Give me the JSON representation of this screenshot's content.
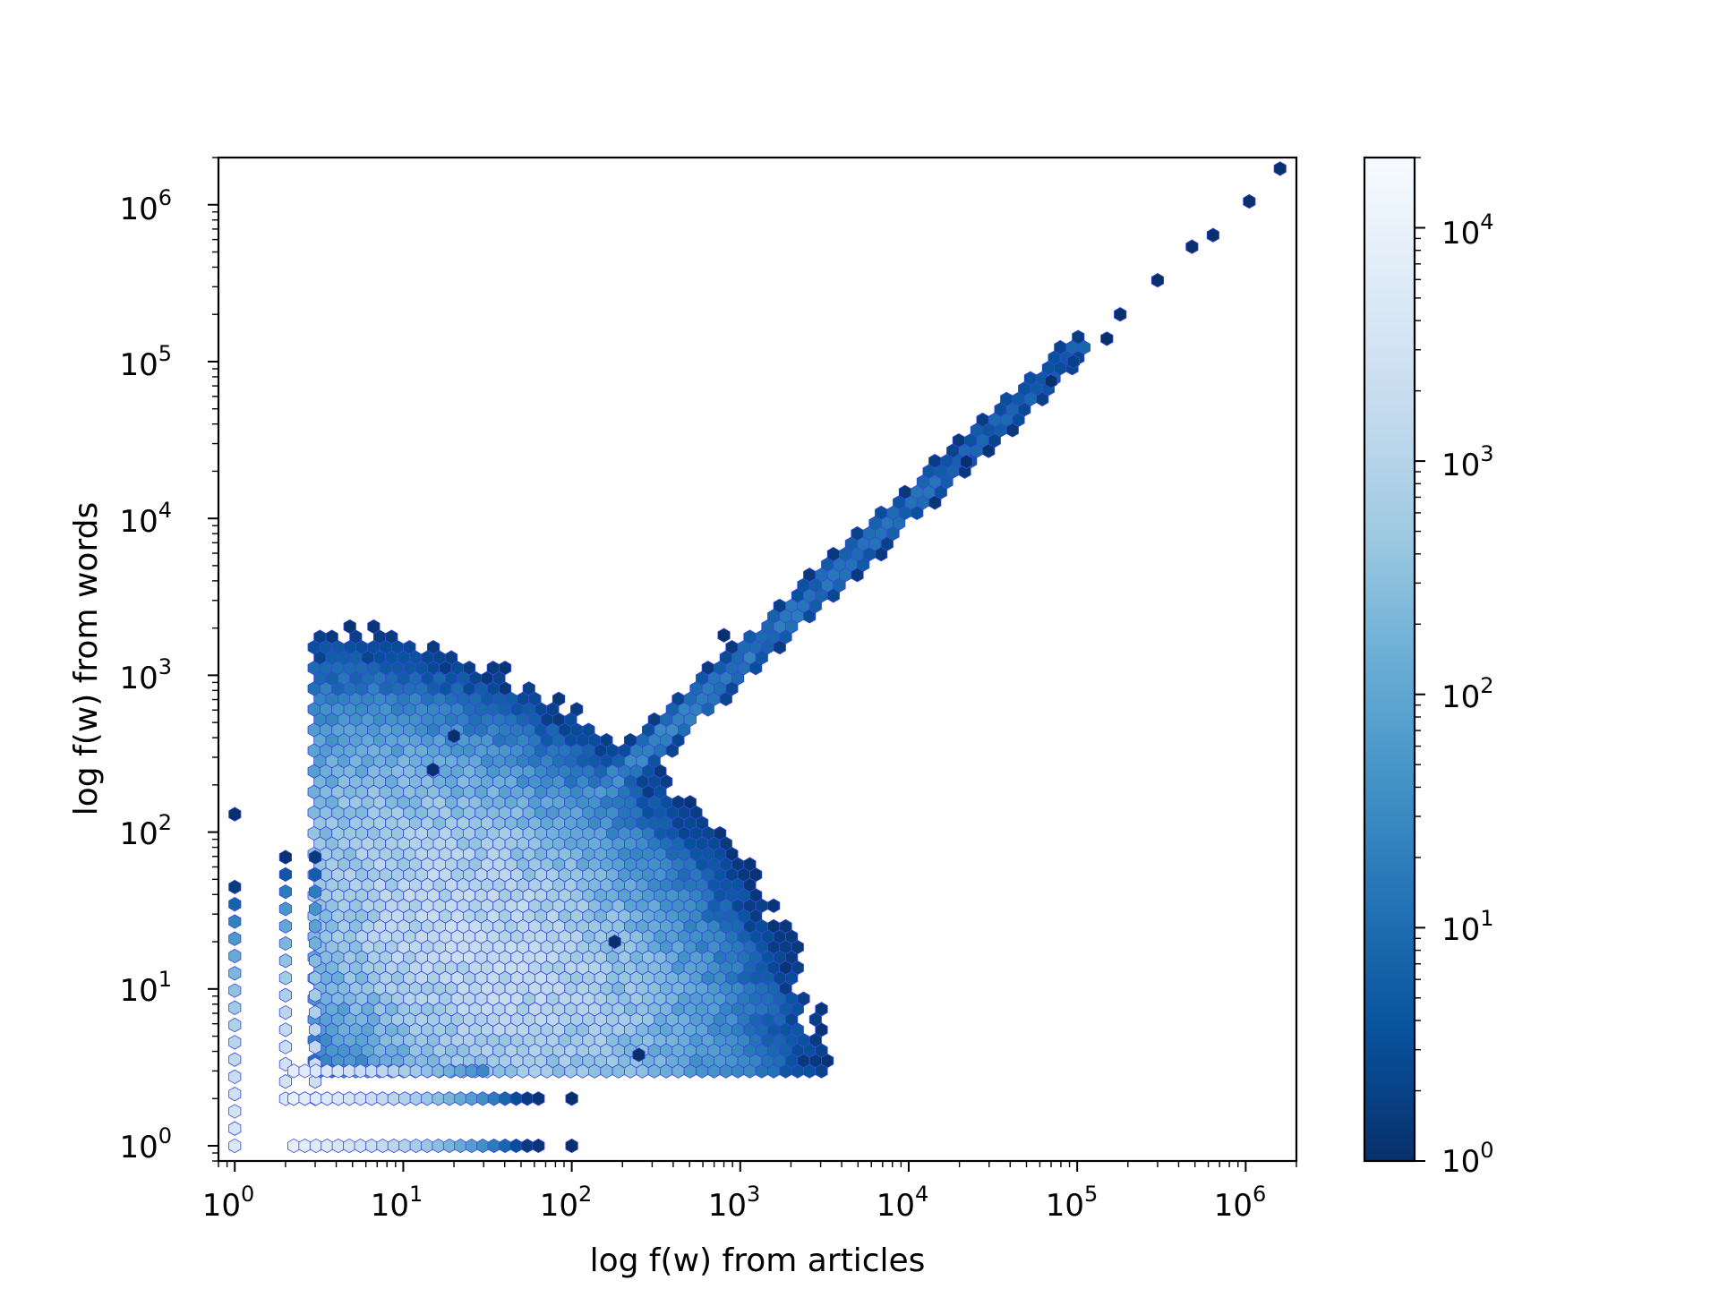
{
  "chart_data": {
    "type": "hexbin",
    "xlabel": "log f(w) from articles",
    "ylabel": "log f(w) from words",
    "xscale": "log",
    "yscale": "log",
    "xlim": [
      0.8,
      2000000
    ],
    "ylim": [
      0.8,
      2000000
    ],
    "x_ticks": [
      {
        "value": 1,
        "base": "10",
        "exp": "0"
      },
      {
        "value": 10,
        "base": "10",
        "exp": "1"
      },
      {
        "value": 100,
        "base": "10",
        "exp": "2"
      },
      {
        "value": 1000,
        "base": "10",
        "exp": "3"
      },
      {
        "value": 10000,
        "base": "10",
        "exp": "4"
      },
      {
        "value": 100000,
        "base": "10",
        "exp": "5"
      },
      {
        "value": 1000000,
        "base": "10",
        "exp": "6"
      }
    ],
    "y_ticks": [
      {
        "value": 1,
        "base": "10",
        "exp": "0"
      },
      {
        "value": 10,
        "base": "10",
        "exp": "1"
      },
      {
        "value": 100,
        "base": "10",
        "exp": "2"
      },
      {
        "value": 1000,
        "base": "10",
        "exp": "3"
      },
      {
        "value": 10000,
        "base": "10",
        "exp": "4"
      },
      {
        "value": 100000,
        "base": "10",
        "exp": "5"
      },
      {
        "value": 1000000,
        "base": "10",
        "exp": "6"
      }
    ],
    "colorbar": {
      "scale": "log",
      "range": [
        1,
        20000
      ],
      "colormap": "Blues_r",
      "ticks": [
        {
          "value": 1,
          "base": "10",
          "exp": "0"
        },
        {
          "value": 10,
          "base": "10",
          "exp": "1"
        },
        {
          "value": 100,
          "base": "10",
          "exp": "2"
        },
        {
          "value": 1000,
          "base": "10",
          "exp": "3"
        },
        {
          "value": 10000,
          "base": "10",
          "exp": "4"
        }
      ]
    },
    "colormap_stops": [
      "#08306b",
      "#08519c",
      "#2171b5",
      "#4292c6",
      "#6baed6",
      "#9ecae1",
      "#c6dbef",
      "#deebf7",
      "#f7fbff"
    ],
    "edge_color": "#3b45e0",
    "diagonal_cells": [
      {
        "x": 1600000,
        "y": 1700000,
        "count": 1
      },
      {
        "x": 1050000,
        "y": 1050000,
        "count": 1
      },
      {
        "x": 640000,
        "y": 640000,
        "count": 1
      },
      {
        "x": 480000,
        "y": 540000,
        "count": 1
      },
      {
        "x": 300000,
        "y": 330000,
        "count": 1
      },
      {
        "x": 180000,
        "y": 200000,
        "count": 1
      },
      {
        "x": 150000,
        "y": 140000,
        "count": 1
      },
      {
        "x": 95000,
        "y": 100000,
        "count": 2
      },
      {
        "x": 70000,
        "y": 75000,
        "count": 1
      },
      {
        "x": 22000,
        "y": 23000,
        "count": 1
      },
      {
        "x": 800,
        "y": 1800,
        "count": 1
      },
      {
        "x": 20,
        "y": 410,
        "count": 1
      },
      {
        "x": 15,
        "y": 250,
        "count": 1
      },
      {
        "x": 1,
        "y": 130,
        "count": 1
      },
      {
        "x": 180,
        "y": 20,
        "count": 1
      },
      {
        "x": 250,
        "y": 3.8,
        "count": 1
      },
      {
        "x": 100,
        "y": 2,
        "count": 1
      },
      {
        "x": 100,
        "y": 1,
        "count": 1
      }
    ],
    "cluster_description": "Dense hexbin cloud spanning x 1–500, y 1–300 with peak counts (~10^3) around x≈20–40, y≈10–40; narrow ridge along y≈x up to ~10^5 with counts 1–50; horizontal bands at y=1 and y=2 for x 1–60."
  }
}
